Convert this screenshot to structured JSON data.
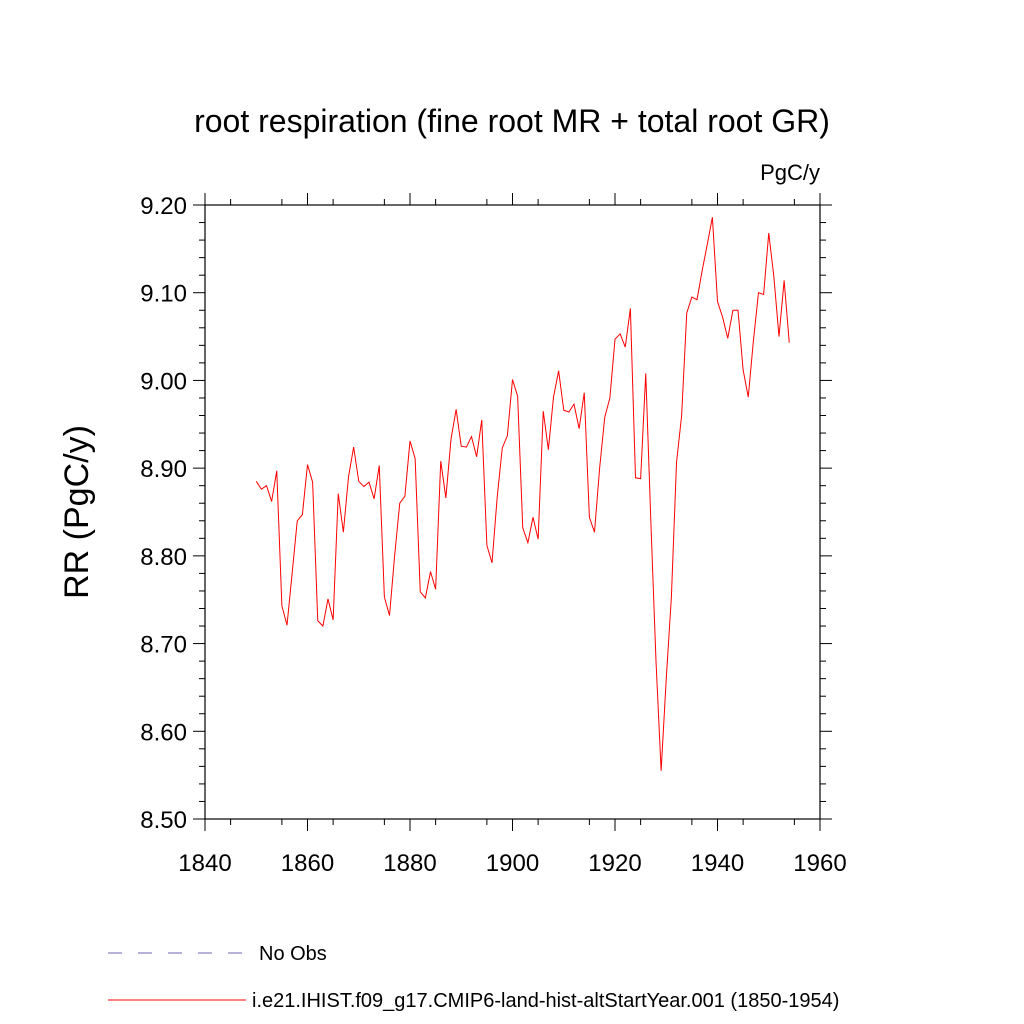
{
  "chart_data": {
    "type": "line",
    "title": "root respiration (fine root MR + total root GR)",
    "units": "PgC/y",
    "ylabel": "RR  (PgC/y)",
    "xlabel": "",
    "xlim": [
      1840,
      1960
    ],
    "ylim": [
      8.5,
      9.2
    ],
    "x_ticks": [
      1840,
      1860,
      1880,
      1900,
      1920,
      1940,
      1960
    ],
    "x_tick_labels": [
      "1840",
      "1860",
      "1880",
      "1900",
      "1920",
      "1940",
      "1960"
    ],
    "y_ticks": [
      8.5,
      8.6,
      8.7,
      8.8,
      8.9,
      9.0,
      9.1,
      9.2
    ],
    "y_tick_labels": [
      "8.50",
      "8.60",
      "8.70",
      "8.80",
      "8.90",
      "9.00",
      "9.10",
      "9.20"
    ],
    "grid": false,
    "legend_position": "bottom",
    "legend": [
      {
        "label": "No Obs",
        "color": "#6f63b5",
        "style": "dashed"
      },
      {
        "label": "i.e21.IHIST.f09_g17.CMIP6-land-hist-altStartYear.001 (1850-1954)",
        "color": "#ff0000",
        "style": "solid"
      }
    ],
    "series": [
      {
        "name": "i.e21.IHIST.f09_g17.CMIP6-land-hist-altStartYear.001 (1850-1954)",
        "color": "#ff0000",
        "x_start": 1850,
        "values": [
          8.885,
          8.876,
          8.88,
          8.862,
          8.897,
          8.743,
          8.721,
          8.78,
          8.84,
          8.847,
          8.904,
          8.884,
          8.726,
          8.72,
          8.751,
          8.727,
          8.871,
          8.827,
          8.89,
          8.924,
          8.885,
          8.879,
          8.884,
          8.865,
          8.903,
          8.753,
          8.732,
          8.8,
          8.86,
          8.868,
          8.931,
          8.911,
          8.759,
          8.752,
          8.782,
          8.762,
          8.908,
          8.866,
          8.933,
          8.967,
          8.925,
          8.924,
          8.936,
          8.913,
          8.955,
          8.812,
          8.792,
          8.866,
          8.923,
          8.937,
          9.001,
          8.982,
          8.832,
          8.815,
          8.844,
          8.819,
          8.965,
          8.921,
          8.981,
          9.011,
          8.966,
          8.964,
          8.973,
          8.945,
          8.986,
          8.844,
          8.827,
          8.9,
          8.958,
          8.98,
          9.047,
          9.053,
          9.038,
          9.082,
          8.889,
          8.888,
          9.008,
          8.838,
          8.68,
          8.555,
          8.66,
          8.753,
          8.906,
          8.96,
          9.077,
          9.095,
          9.092,
          9.125,
          9.155,
          9.186,
          9.09,
          9.072,
          9.048,
          9.08,
          9.08,
          9.012,
          8.981,
          9.045,
          9.1,
          9.098,
          9.168,
          9.118,
          9.05,
          9.114,
          9.043
        ]
      }
    ]
  }
}
